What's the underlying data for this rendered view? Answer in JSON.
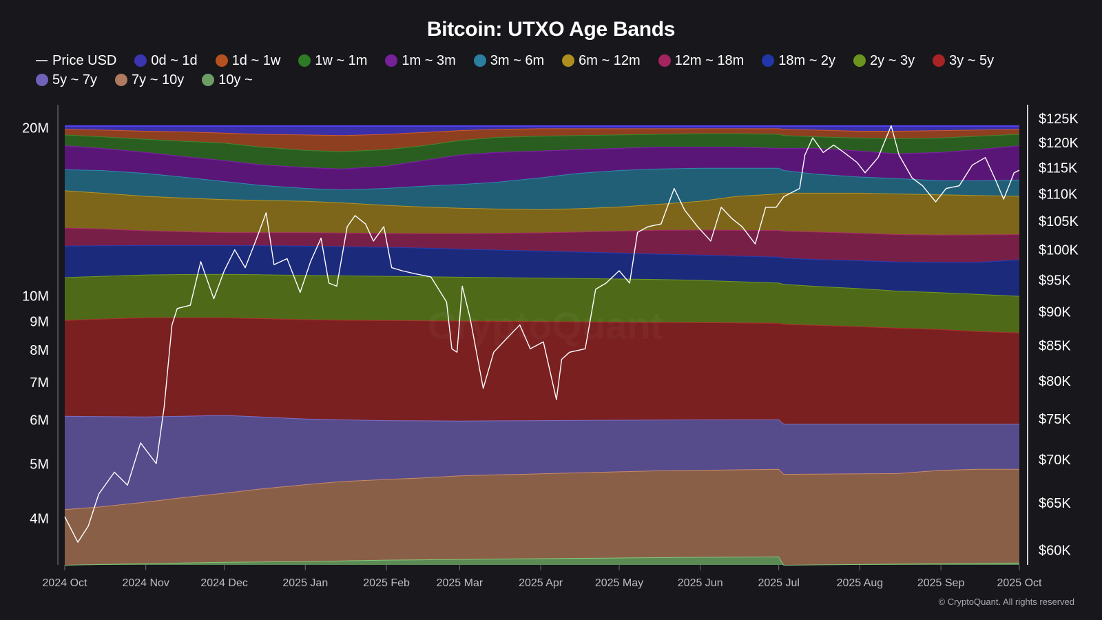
{
  "title": "Bitcoin: UTXO Age Bands",
  "copyright": "© CryptoQuant. All rights reserved",
  "watermark": "CryptoQuant",
  "legend": [
    {
      "label": "Price USD",
      "kind": "line",
      "color": "#c8c8c8"
    },
    {
      "label": "0d ~ 1d",
      "color": "#3b35b0"
    },
    {
      "label": "1d ~ 1w",
      "color": "#b4511f"
    },
    {
      "label": "1w ~ 1m",
      "color": "#2e7a25"
    },
    {
      "label": "1m ~ 3m",
      "color": "#76209a"
    },
    {
      "label": "3m ~ 6m",
      "color": "#2b7fa0"
    },
    {
      "label": "6m ~ 12m",
      "color": "#ad8e1e"
    },
    {
      "label": "12m ~ 18m",
      "color": "#a3245f"
    },
    {
      "label": "18m ~ 2y",
      "color": "#2236a8"
    },
    {
      "label": "2y ~ 3y",
      "color": "#6a941e"
    },
    {
      "label": "3y ~ 5y",
      "color": "#a82424"
    },
    {
      "label": "5y ~ 7y",
      "color": "#6f62b8"
    },
    {
      "label": "7y ~ 10y",
      "color": "#b07a5e"
    },
    {
      "label": "10y ~",
      "color": "#6d9c66"
    }
  ],
  "chart_data": {
    "type": "area",
    "stacked": true,
    "left_axis": {
      "scale": "log",
      "range": [
        3300000,
        22000000
      ],
      "ticks": [
        "4M",
        "5M",
        "6M",
        "7M",
        "8M",
        "9M",
        "10M",
        "20M"
      ],
      "tick_values": [
        4000000,
        5000000,
        6000000,
        7000000,
        8000000,
        9000000,
        10000000,
        20000000
      ]
    },
    "right_axis": {
      "scale": "log",
      "range": [
        58500,
        128000
      ],
      "ticks": [
        "$60K",
        "$65K",
        "$70K",
        "$75K",
        "$80K",
        "$85K",
        "$90K",
        "$95K",
        "$100K",
        "$105K",
        "$110K",
        "$115K",
        "$120K",
        "$125K"
      ],
      "tick_values": [
        60000,
        65000,
        70000,
        75000,
        80000,
        85000,
        90000,
        95000,
        100000,
        105000,
        110000,
        115000,
        120000,
        125000
      ]
    },
    "x_ticks": [
      "2024 Oct",
      "2024 Nov",
      "2024 Dec",
      "2025 Jan",
      "2025 Feb",
      "2025 Mar",
      "2025 Apr",
      "2025 May",
      "2025 Jun",
      "2025 Jul",
      "2025 Aug",
      "2025 Sep",
      "2025 Oct"
    ],
    "x_tick_dates": [
      "2024-10-01",
      "2024-11-01",
      "2024-12-01",
      "2025-01-01",
      "2025-02-01",
      "2025-03-01",
      "2025-04-01",
      "2025-05-01",
      "2025-06-01",
      "2025-07-01",
      "2025-08-01",
      "2025-09-01",
      "2025-10-01"
    ],
    "x_dates": [
      "2024-10-01",
      "2024-10-15",
      "2024-11-01",
      "2024-11-15",
      "2024-12-01",
      "2024-12-15",
      "2025-01-01",
      "2025-01-15",
      "2025-02-01",
      "2025-02-15",
      "2025-03-01",
      "2025-03-15",
      "2025-04-01",
      "2025-04-15",
      "2025-05-01",
      "2025-05-15",
      "2025-06-01",
      "2025-06-15",
      "2025-07-01",
      "2025-07-03",
      "2025-07-15",
      "2025-08-01",
      "2025-08-15",
      "2025-09-01",
      "2025-09-15",
      "2025-10-01"
    ],
    "cumulative_series_note": "values are cumulative stack tops (bottom band first), in BTC",
    "series": [
      {
        "name": "10y ~",
        "color": "#5c8a55",
        "values": [
          3300000,
          3310000,
          3320000,
          3330000,
          3340000,
          3345000,
          3350000,
          3360000,
          3370000,
          3375000,
          3380000,
          3385000,
          3390000,
          3395000,
          3400000,
          3405000,
          3410000,
          3412000,
          3415000,
          3300000,
          3305000,
          3310000,
          3315000,
          3320000,
          3325000,
          3330000
        ]
      },
      {
        "name": "7y ~ 10y",
        "color": "#8a5f48",
        "values": [
          4150000,
          4200000,
          4280000,
          4360000,
          4440000,
          4520000,
          4600000,
          4660000,
          4700000,
          4730000,
          4770000,
          4790000,
          4810000,
          4830000,
          4850000,
          4870000,
          4880000,
          4890000,
          4900000,
          4800000,
          4805000,
          4810000,
          4815000,
          4880000,
          4900000,
          4900000
        ]
      },
      {
        "name": "5y ~ 7y",
        "color": "#564c8c",
        "values": [
          6100000,
          6090000,
          6080000,
          6100000,
          6120000,
          6080000,
          6030000,
          6010000,
          5990000,
          5985000,
          5980000,
          5985000,
          5990000,
          5995000,
          6000000,
          6005000,
          6008000,
          6010000,
          6010000,
          5900000,
          5900000,
          5900000,
          5900000,
          5900000,
          5900000,
          5900000
        ]
      },
      {
        "name": "3y ~ 5y",
        "color": "#7a2020",
        "values": [
          9050000,
          9100000,
          9150000,
          9150000,
          9150000,
          9120000,
          9080000,
          9060000,
          9050000,
          9040000,
          9030000,
          9020000,
          9010000,
          9000000,
          8990000,
          8980000,
          8970000,
          8960000,
          8950000,
          8910000,
          8870000,
          8820000,
          8770000,
          8720000,
          8650000,
          8600000
        ]
      },
      {
        "name": "2y ~ 3y",
        "color": "#4e6a18",
        "values": [
          10800000,
          10860000,
          10920000,
          10940000,
          10950000,
          10930000,
          10900000,
          10880000,
          10860000,
          10840000,
          10820000,
          10800000,
          10780000,
          10760000,
          10740000,
          10720000,
          10680000,
          10620000,
          10560000,
          10500000,
          10420000,
          10320000,
          10220000,
          10150000,
          10080000,
          10000000
        ]
      },
      {
        "name": "18m ~ 2y",
        "color": "#1c2a7c",
        "values": [
          12300000,
          12320000,
          12330000,
          12330000,
          12330000,
          12320000,
          12300000,
          12270000,
          12240000,
          12200000,
          12150000,
          12100000,
          12050000,
          12000000,
          11950000,
          11900000,
          11850000,
          11800000,
          11750000,
          11700000,
          11640000,
          11580000,
          11520000,
          11500000,
          11500000,
          11620000
        ]
      },
      {
        "name": "12m ~ 18m",
        "color": "#781f48",
        "values": [
          13250000,
          13200000,
          13100000,
          13050000,
          13000000,
          13000000,
          13000000,
          12980000,
          12960000,
          12950000,
          12950000,
          12960000,
          12990000,
          13030000,
          13080000,
          13130000,
          13140000,
          13130000,
          13120000,
          13080000,
          13040000,
          12970000,
          12900000,
          12870000,
          12880000,
          12900000
        ]
      },
      {
        "name": "6m ~ 12m",
        "color": "#7d661a",
        "values": [
          15450000,
          15300000,
          15100000,
          15000000,
          14900000,
          14850000,
          14800000,
          14700000,
          14550000,
          14450000,
          14380000,
          14330000,
          14300000,
          14350000,
          14450000,
          14600000,
          14800000,
          15100000,
          15250000,
          15300000,
          15300000,
          15300000,
          15250000,
          15200000,
          15150000,
          15100000
        ]
      },
      {
        "name": "3m ~ 6m",
        "color": "#215f77",
        "values": [
          16850000,
          16800000,
          16600000,
          16350000,
          16050000,
          15800000,
          15600000,
          15500000,
          15600000,
          15750000,
          15850000,
          16000000,
          16300000,
          16600000,
          16800000,
          16900000,
          16950000,
          16950000,
          16950000,
          16800000,
          16550000,
          16350000,
          16250000,
          16100000,
          16100000,
          16150000
        ]
      },
      {
        "name": "1m ~ 3m",
        "color": "#5a1677",
        "values": [
          18600000,
          18400000,
          18100000,
          17800000,
          17500000,
          17200000,
          17000000,
          16900000,
          17100000,
          17500000,
          17900000,
          18100000,
          18200000,
          18300000,
          18400000,
          18500000,
          18500000,
          18500000,
          18400000,
          18400000,
          18400000,
          18200000,
          18000000,
          18100000,
          18300000,
          18600000
        ]
      },
      {
        "name": "1w ~ 1m",
        "color": "#2a5e20",
        "values": [
          19450000,
          19300000,
          19100000,
          18950000,
          18800000,
          18500000,
          18250000,
          18150000,
          18300000,
          18600000,
          19000000,
          19250000,
          19350000,
          19400000,
          19450000,
          19500000,
          19550000,
          19550000,
          19500000,
          19400000,
          19300000,
          19200000,
          19150000,
          19200000,
          19350000,
          19500000
        ]
      },
      {
        "name": "1d ~ 1w",
        "color": "#8e3f20",
        "values": [
          19900000,
          19850000,
          19750000,
          19700000,
          19600000,
          19500000,
          19450000,
          19400000,
          19500000,
          19650000,
          19800000,
          19900000,
          19950000,
          19950000,
          19950000,
          19950000,
          19950000,
          19950000,
          19950000,
          19900000,
          19850000,
          19750000,
          19750000,
          19800000,
          19850000,
          19900000
        ]
      },
      {
        "name": "0d ~ 1d",
        "color": "#3a30a8",
        "values": [
          20150000,
          20150000,
          20150000,
          20150000,
          20150000,
          20150000,
          20150000,
          20150000,
          20150000,
          20150000,
          20150000,
          20150000,
          20150000,
          20150000,
          20150000,
          20150000,
          20150000,
          20150000,
          20150000,
          20150000,
          20150000,
          20150000,
          20150000,
          20150000,
          20150000,
          20150000
        ]
      }
    ],
    "price_series": {
      "name": "Price USD",
      "color": "#ffffff",
      "dates": [
        "2024-10-01",
        "2024-10-06",
        "2024-10-10",
        "2024-10-14",
        "2024-10-20",
        "2024-10-25",
        "2024-10-30",
        "2024-11-05",
        "2024-11-08",
        "2024-11-11",
        "2024-11-13",
        "2024-11-18",
        "2024-11-22",
        "2024-11-27",
        "2024-12-01",
        "2024-12-05",
        "2024-12-09",
        "2024-12-13",
        "2024-12-17",
        "2024-12-20",
        "2024-12-25",
        "2024-12-30",
        "2025-01-03",
        "2025-01-07",
        "2025-01-10",
        "2025-01-13",
        "2025-01-17",
        "2025-01-20",
        "2025-01-24",
        "2025-01-27",
        "2025-01-31",
        "2025-02-03",
        "2025-02-07",
        "2025-02-12",
        "2025-02-18",
        "2025-02-24",
        "2025-02-26",
        "2025-02-28",
        "2025-03-02",
        "2025-03-05",
        "2025-03-10",
        "2025-03-14",
        "2025-03-19",
        "2025-03-24",
        "2025-03-28",
        "2025-04-02",
        "2025-04-07",
        "2025-04-09",
        "2025-04-12",
        "2025-04-18",
        "2025-04-22",
        "2025-04-26",
        "2025-05-01",
        "2025-05-05",
        "2025-05-08",
        "2025-05-12",
        "2025-05-17",
        "2025-05-22",
        "2025-05-26",
        "2025-05-31",
        "2025-06-05",
        "2025-06-09",
        "2025-06-13",
        "2025-06-17",
        "2025-06-22",
        "2025-06-26",
        "2025-06-30",
        "2025-07-03",
        "2025-07-09",
        "2025-07-11",
        "2025-07-14",
        "2025-07-18",
        "2025-07-22",
        "2025-07-26",
        "2025-07-31",
        "2025-08-03",
        "2025-08-08",
        "2025-08-13",
        "2025-08-16",
        "2025-08-21",
        "2025-08-25",
        "2025-08-30",
        "2025-09-03",
        "2025-09-08",
        "2025-09-13",
        "2025-09-18",
        "2025-09-22",
        "2025-09-25",
        "2025-09-29",
        "2025-10-01"
      ],
      "values": [
        63500,
        60800,
        62500,
        66000,
        68500,
        67000,
        72000,
        69500,
        76500,
        88000,
        90500,
        91000,
        98000,
        92000,
        96500,
        100000,
        97000,
        101500,
        106500,
        97500,
        98500,
        93000,
        98000,
        102000,
        94500,
        94000,
        104000,
        106000,
        104500,
        101500,
        104000,
        97000,
        96500,
        96000,
        95500,
        91500,
        84500,
        84000,
        94000,
        89000,
        79000,
        84000,
        86000,
        88000,
        84500,
        85500,
        77500,
        83000,
        84000,
        84500,
        93500,
        94500,
        96500,
        94500,
        103000,
        104000,
        104500,
        111000,
        107000,
        104000,
        101500,
        107500,
        105500,
        104000,
        101000,
        107500,
        107500,
        109500,
        111000,
        117500,
        121000,
        118000,
        119500,
        118000,
        116000,
        114000,
        117000,
        123500,
        117500,
        113000,
        111500,
        108500,
        111000,
        111500,
        115500,
        117000,
        112500,
        109000,
        114000,
        114500
      ]
    }
  }
}
